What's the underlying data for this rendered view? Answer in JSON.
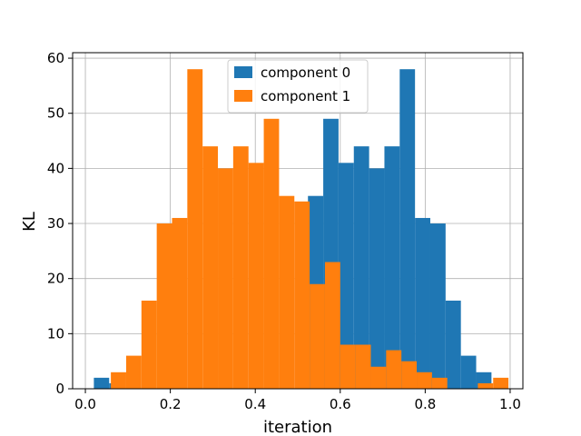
{
  "chart_data": {
    "type": "bar",
    "title": "",
    "xlabel": "iteration",
    "ylabel": "KL",
    "xlim": [
      -0.03,
      1.03
    ],
    "ylim": [
      0,
      61
    ],
    "xticks": [
      "0.0",
      "0.2",
      "0.4",
      "0.6",
      "0.8",
      "1.0"
    ],
    "xtick_values": [
      0.0,
      0.2,
      0.4,
      0.6,
      0.8,
      1.0
    ],
    "yticks": [
      "0",
      "10",
      "20",
      "30",
      "40",
      "50",
      "60"
    ],
    "ytick_values": [
      0,
      10,
      20,
      30,
      40,
      50,
      60
    ],
    "grid": true,
    "legend_position": "upper center",
    "series": [
      {
        "name": "component 0",
        "color": "#1f77b4",
        "bin_start": 0.02,
        "bin_width": 0.036,
        "values": [
          2,
          1,
          0,
          0,
          0,
          0,
          0,
          0,
          0,
          0,
          0,
          0,
          0,
          0,
          35,
          49,
          41,
          44,
          40,
          44,
          58,
          31,
          30,
          16,
          6,
          3,
          0
        ]
      },
      {
        "name": "component 1",
        "color": "#ff7f0e",
        "bin_start": 0.06,
        "bin_width": 0.036,
        "values": [
          3,
          6,
          16,
          30,
          31,
          58,
          44,
          40,
          44,
          41,
          49,
          35,
          34,
          19,
          23,
          8,
          8,
          4,
          7,
          5,
          3,
          2,
          0,
          0,
          1,
          2
        ]
      }
    ]
  }
}
